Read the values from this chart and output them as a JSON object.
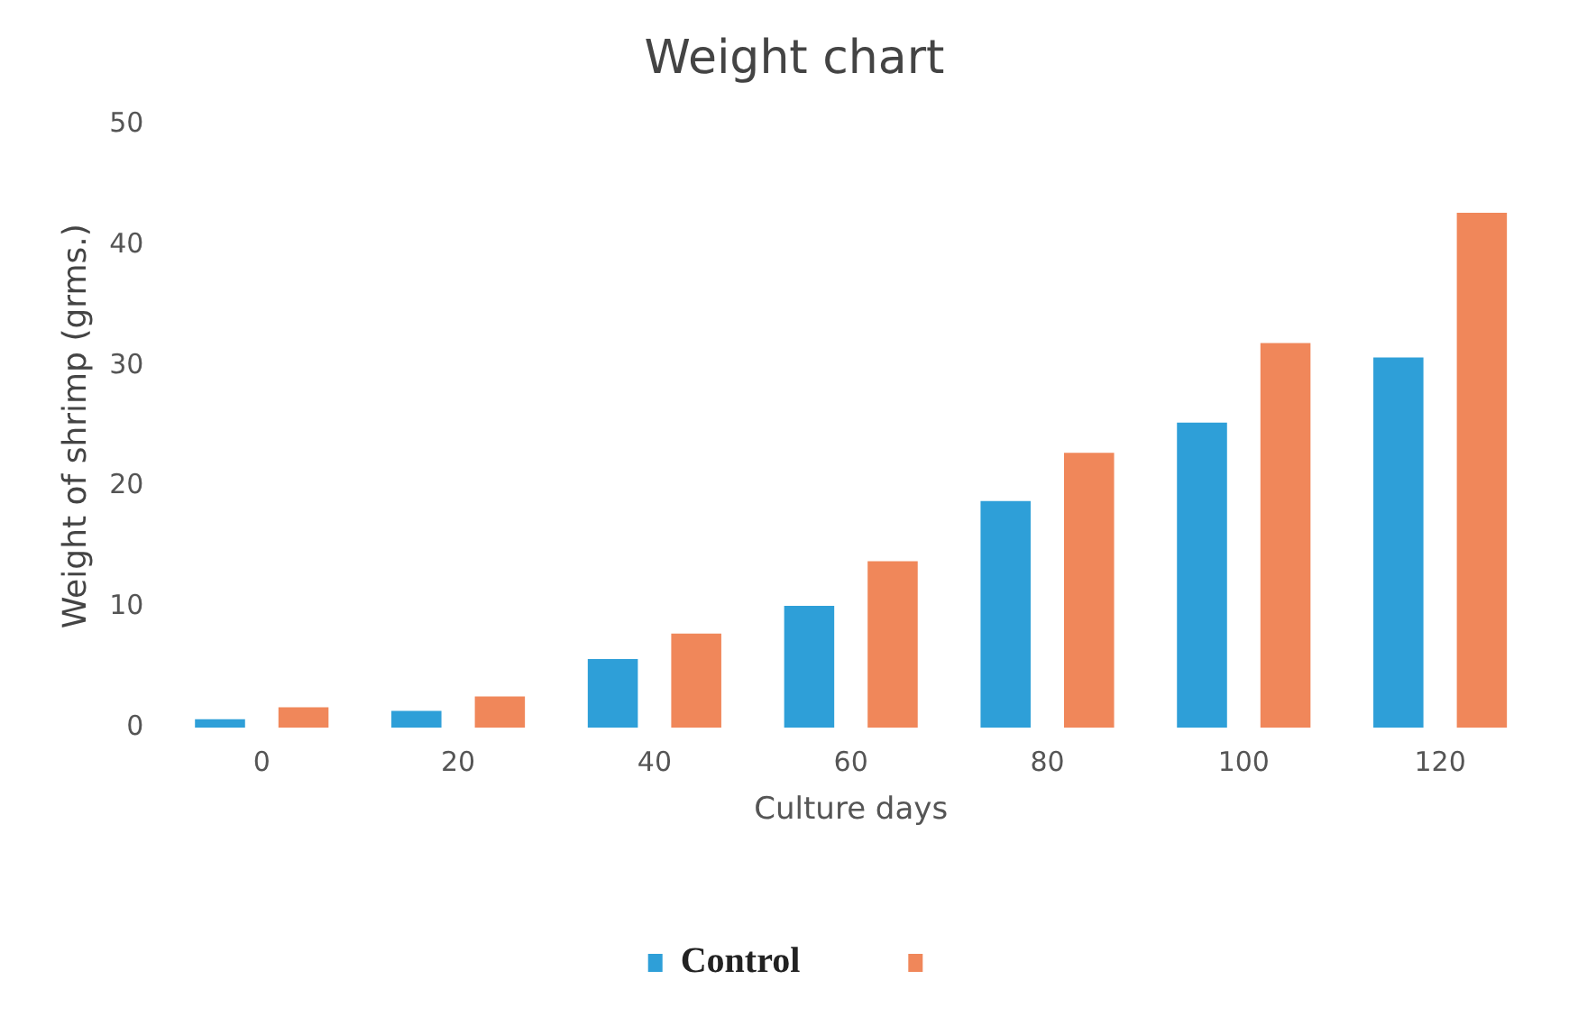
{
  "chart_data": {
    "type": "bar",
    "title": "Weight chart",
    "xlabel": "Culture days",
    "ylabel": "Weight of shrimp (grms.)",
    "categories": [
      "0",
      "20",
      "40",
      "60",
      "80",
      "100",
      "120"
    ],
    "series": [
      {
        "name": "Control",
        "color": "#2e9fd8",
        "values": [
          0.7,
          1.4,
          5.7,
          10.1,
          18.8,
          25.3,
          30.7
        ]
      },
      {
        "color": "#f0875a",
        "values": [
          1.7,
          2.6,
          7.8,
          13.8,
          22.8,
          31.9,
          42.7
        ]
      }
    ],
    "ylim": [
      0,
      50
    ],
    "yticks": [
      0,
      10,
      20,
      30,
      40,
      50
    ],
    "grid": false,
    "legend": "bottom"
  }
}
